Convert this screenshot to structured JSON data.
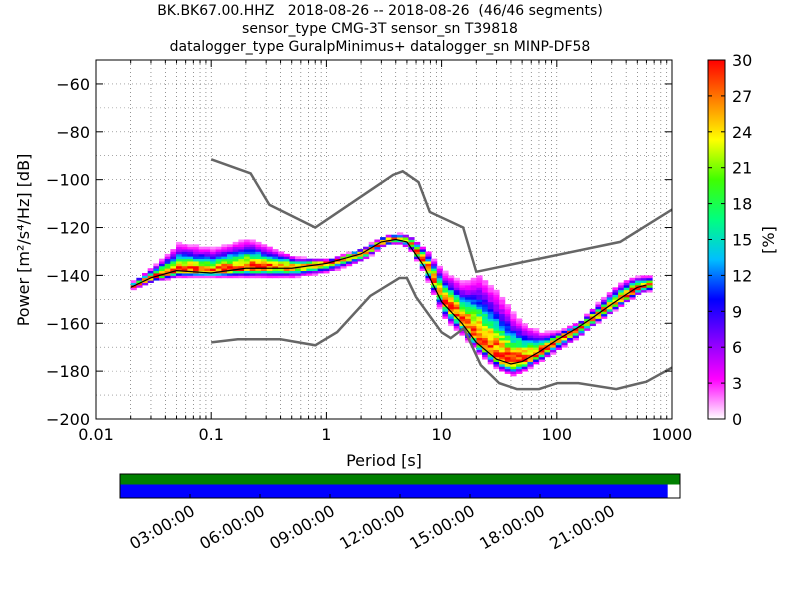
{
  "title_lines": [
    "BK.BK67.00.HHZ   2018-08-26 -- 2018-08-26  (46/46 segments)",
    "sensor_type CMG-3T sensor_sn T39818",
    "datalogger_type GuralpMinimus+ datalogger_sn MINP-DF58"
  ],
  "chart_data": {
    "type": "heatmap",
    "xlabel": "Period [s]",
    "ylabel": "Power [m²/s⁴/Hz] [dB]",
    "xscale": "log",
    "xlim": [
      0.01,
      1000
    ],
    "ylim": [
      -200,
      -50
    ],
    "x_ticks": [
      0.01,
      0.1,
      1,
      10,
      100,
      1000
    ],
    "x_tick_labels": [
      "0.01",
      "0.1",
      "1",
      "10",
      "100",
      "1000"
    ],
    "y_ticks": [
      -200,
      -180,
      -160,
      -140,
      -120,
      -100,
      -80,
      -60
    ],
    "grid": "dotted vertical (period bins) and horizontal (dB bins)",
    "colorbar": {
      "label": "[%]",
      "range": [
        0,
        30
      ],
      "ticks": [
        0,
        3,
        6,
        9,
        12,
        15,
        18,
        21,
        24,
        27,
        30
      ],
      "colormap": [
        "#ffffff",
        "#ff00ff",
        "#8000ff",
        "#0000ff",
        "#00bfff",
        "#00ff80",
        "#40ff00",
        "#ffff00",
        "#ff8000",
        "#ff0000"
      ]
    },
    "mode_curve": {
      "period": [
        0.02,
        0.03,
        0.05,
        0.1,
        0.2,
        0.5,
        1,
        2,
        3,
        4,
        5,
        7,
        10,
        15,
        20,
        30,
        40,
        50,
        70,
        100,
        150,
        200,
        300,
        400,
        500,
        600
      ],
      "power": [
        -145,
        -141,
        -138,
        -139,
        -137,
        -137,
        -135,
        -131,
        -126,
        -125,
        -126,
        -136,
        -151,
        -160,
        -168,
        -175,
        -177,
        -176,
        -172,
        -167,
        -162,
        -158,
        -152,
        -148,
        -145,
        -144
      ]
    },
    "spread": {
      "period": [
        0.02,
        0.03,
        0.05,
        0.1,
        0.2,
        0.5,
        1,
        2,
        3,
        4,
        5,
        7,
        10,
        15,
        20,
        30,
        40,
        50,
        70,
        100,
        150,
        200,
        300,
        400,
        500,
        600
      ],
      "upper": [
        -143,
        -137,
        -128,
        -130,
        -126,
        -133,
        -134,
        -129,
        -124,
        -123,
        -124,
        -130,
        -140,
        -145,
        -142,
        -150,
        -158,
        -162,
        -165,
        -164,
        -160,
        -154,
        -146,
        -142,
        -141,
        -141
      ],
      "lower": [
        -146,
        -143,
        -141,
        -141,
        -141,
        -141,
        -139,
        -134,
        -128,
        -127,
        -129,
        -141,
        -158,
        -166,
        -173,
        -180,
        -182,
        -180,
        -176,
        -171,
        -166,
        -161,
        -155,
        -151,
        -148,
        -147
      ]
    },
    "noise_models": [
      {
        "period": [
          0.1,
          0.22,
          0.32,
          0.8,
          3.8,
          4.6,
          6.3,
          7.9,
          15.4,
          20,
          354.8,
          1000
        ],
        "power": [
          -91.5,
          -97.4,
          -110.5,
          -120,
          -98,
          -96.5,
          -101,
          -113.5,
          -120,
          -138.5,
          -126,
          -112.5
        ]
      },
      {
        "period": [
          0.1,
          0.17,
          0.4,
          0.8,
          1.24,
          2.4,
          4.3,
          5,
          6,
          10,
          12,
          15.6,
          21.9,
          31.6,
          45,
          70,
          101,
          154,
          328,
          600,
          1000
        ],
        "power": [
          -168,
          -166.7,
          -166.7,
          -169.2,
          -163.7,
          -148.6,
          -141.1,
          -141.1,
          -149,
          -163.8,
          -166.2,
          -162.1,
          -177.5,
          -185,
          -187.5,
          -187.5,
          -185,
          -185,
          -187.5,
          -184.4,
          -178.5
        ]
      }
    ]
  },
  "time_axis": {
    "tick_labels": [
      "03:00:00",
      "06:00:00",
      "09:00:00",
      "12:00:00",
      "15:00:00",
      "18:00:00",
      "21:00:00"
    ],
    "data_coverage_color": "#008000",
    "psd_coverage_color": "#0000ff",
    "psd_coverage_fraction": 0.978
  }
}
